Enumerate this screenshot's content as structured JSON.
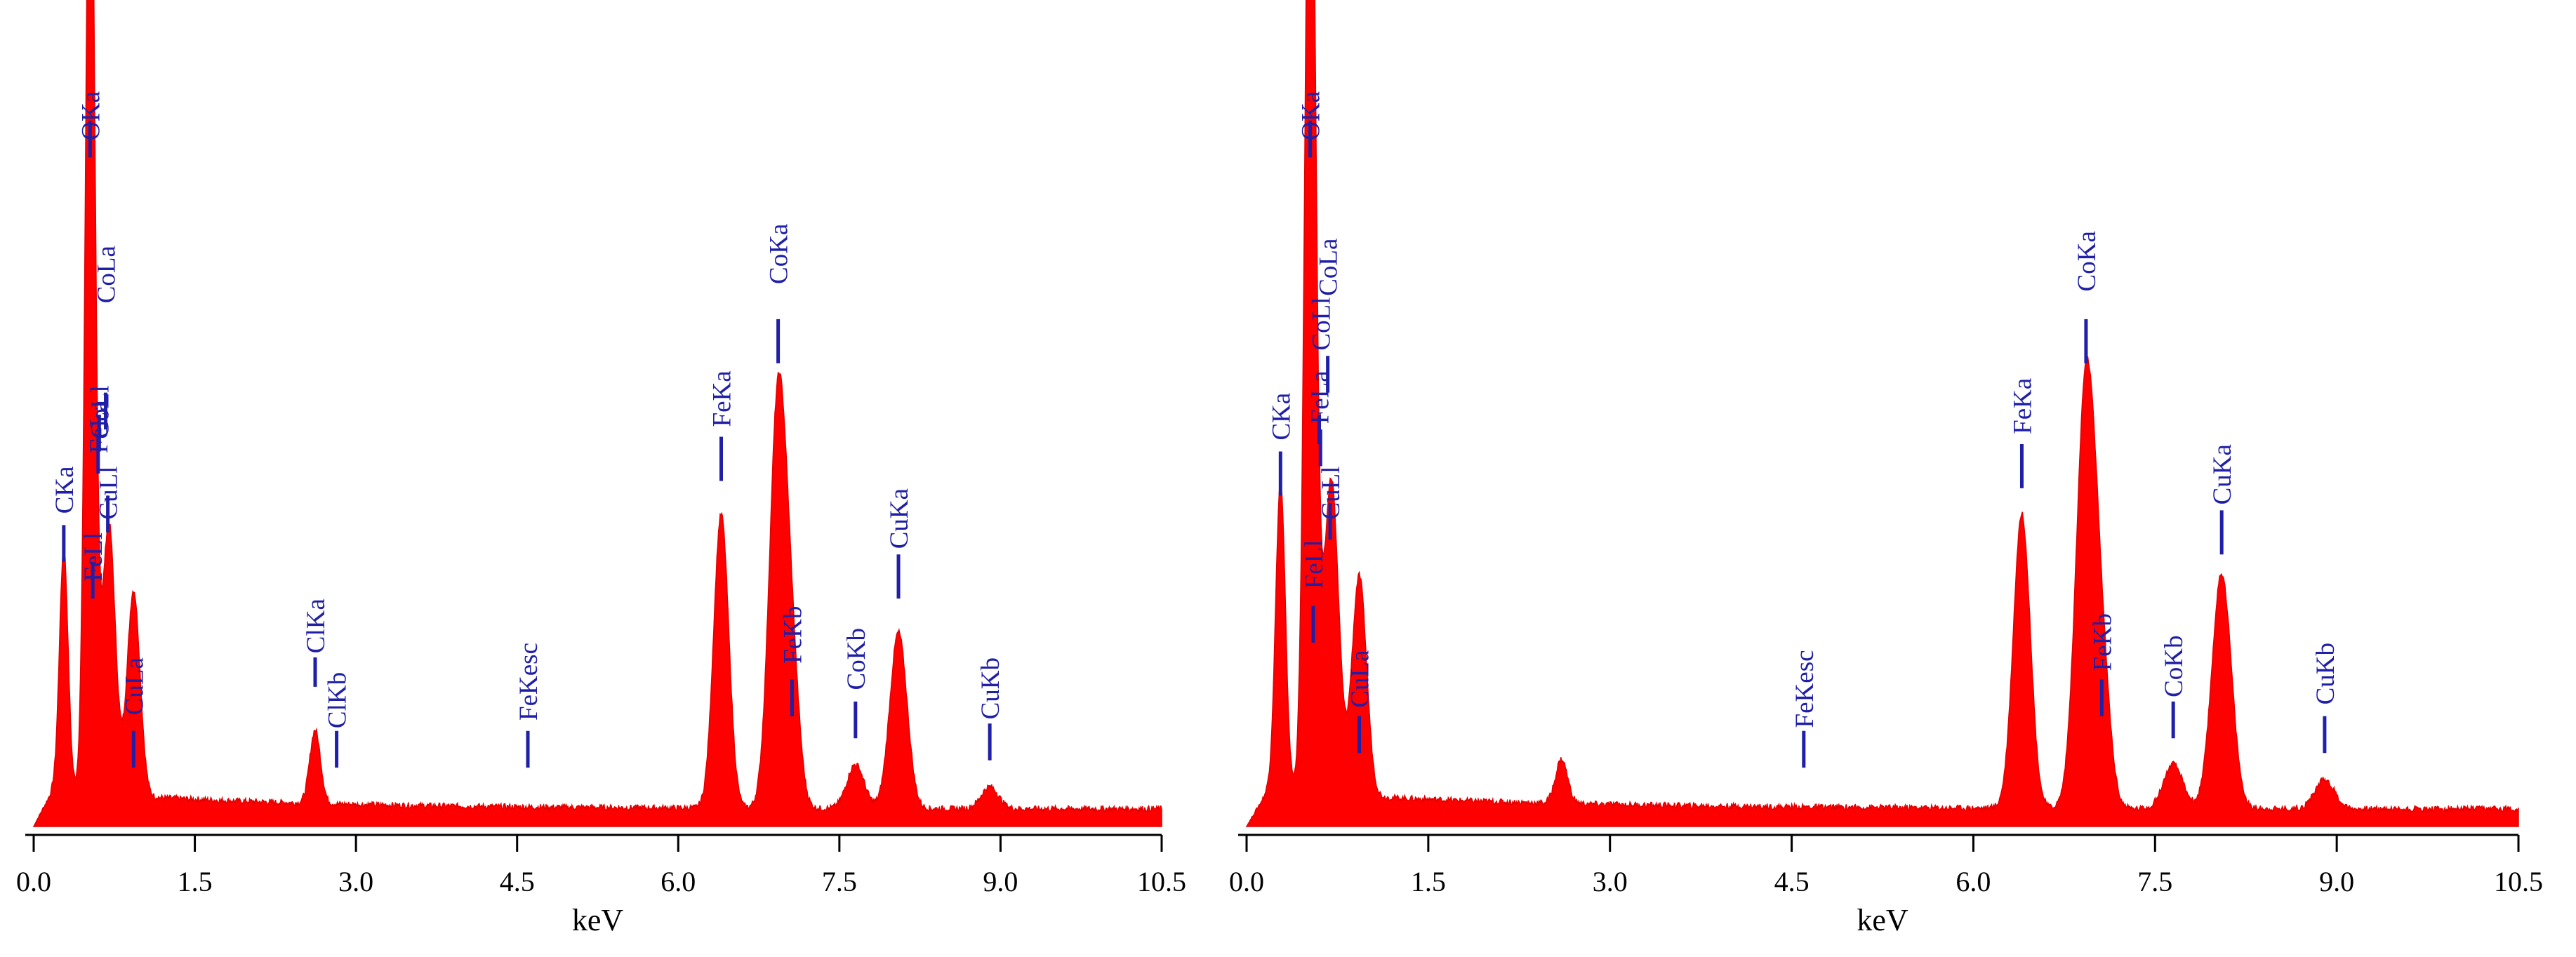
{
  "colors": {
    "spectrum": "#ff0000",
    "peak_label": "#1f1fa8",
    "axis": "#000000",
    "background": "#ffffff"
  },
  "chart_data": [
    {
      "type": "area",
      "xlabel": "keV",
      "ylabel": "",
      "xlim": [
        0,
        10.5
      ],
      "ylim": [
        0,
        100
      ],
      "x_ticks": [
        0.0,
        1.5,
        3.0,
        4.5,
        6.0,
        7.5,
        9.0,
        10.5
      ],
      "x_tick_labels": [
        "0.0",
        "1.5",
        "3.0",
        "4.5",
        "6.0",
        "7.5",
        "9.0",
        "10.5"
      ],
      "grid": false,
      "baseline": 2,
      "series": [
        {
          "peaks": [
            {
              "kev": 0.28,
              "height": 33,
              "width": 0.04
            },
            {
              "kev": 0.525,
              "height": 97,
              "width": 0.04
            },
            {
              "kev": 0.53,
              "height": 48,
              "width": 0.05
            },
            {
              "kev": 0.7,
              "height": 37,
              "width": 0.06
            },
            {
              "kev": 0.93,
              "height": 28,
              "width": 0.06
            },
            {
              "kev": 2.62,
              "height": 10,
              "width": 0.05
            },
            {
              "kev": 6.4,
              "height": 40,
              "width": 0.07
            },
            {
              "kev": 6.93,
              "height": 56,
              "width": 0.08
            },
            {
              "kev": 7.06,
              "height": 16,
              "width": 0.07
            },
            {
              "kev": 7.65,
              "height": 6,
              "width": 0.08
            },
            {
              "kev": 8.05,
              "height": 24,
              "width": 0.08
            },
            {
              "kev": 8.9,
              "height": 3,
              "width": 0.08
            }
          ]
        }
      ],
      "annotations": [
        {
          "text": "OKa",
          "kev": 0.525,
          "label_top": 100,
          "marker_top": 96,
          "marker_bottom": 91
        },
        {
          "text": "CKa",
          "kev": 0.28,
          "label_top": 49,
          "marker_top": 41,
          "marker_bottom": 36
        },
        {
          "text": "FeLa",
          "kev": 0.6,
          "label_top": 58,
          "marker_top": 53,
          "marker_bottom": 48
        },
        {
          "text": "CoLa",
          "kev": 0.67,
          "label_top": 79,
          "marker_top": 59,
          "marker_bottom": 54
        },
        {
          "text": "CoLl",
          "kev": 0.61,
          "label_top": 60,
          "marker_top": 56,
          "marker_bottom": 51
        },
        {
          "text": "CuLl",
          "kev": 0.69,
          "label_top": 49,
          "marker_top": 45,
          "marker_bottom": 40
        },
        {
          "text": "FeLl",
          "kev": 0.55,
          "label_top": 40,
          "marker_top": 36,
          "marker_bottom": 31
        },
        {
          "text": "CuLa",
          "kev": 0.93,
          "label_top": 23,
          "marker_top": 13,
          "marker_bottom": 8
        },
        {
          "text": "ClKa",
          "kev": 2.62,
          "label_top": 31,
          "marker_top": 23,
          "marker_bottom": 19
        },
        {
          "text": "ClKb",
          "kev": 2.82,
          "label_top": 21,
          "marker_top": 13,
          "marker_bottom": 8
        },
        {
          "text": "FeKesc",
          "kev": 4.6,
          "label_top": 25,
          "marker_top": 13,
          "marker_bottom": 8
        },
        {
          "text": "FeKa",
          "kev": 6.4,
          "label_top": 62,
          "marker_top": 53,
          "marker_bottom": 47
        },
        {
          "text": "CoKa",
          "kev": 6.93,
          "label_top": 82,
          "marker_top": 69,
          "marker_bottom": 63
        },
        {
          "text": "FeKb",
          "kev": 7.06,
          "label_top": 30,
          "marker_top": 20,
          "marker_bottom": 15
        },
        {
          "text": "CoKb",
          "kev": 7.65,
          "label_top": 27,
          "marker_top": 17,
          "marker_bottom": 12
        },
        {
          "text": "CuKa",
          "kev": 8.05,
          "label_top": 46,
          "marker_top": 37,
          "marker_bottom": 31
        },
        {
          "text": "CuKb",
          "kev": 8.9,
          "label_top": 23,
          "marker_top": 14,
          "marker_bottom": 9
        }
      ]
    },
    {
      "type": "area",
      "xlabel": "keV",
      "ylabel": "",
      "xlim": [
        0,
        10.5
      ],
      "ylim": [
        0,
        100
      ],
      "x_ticks": [
        0.0,
        1.5,
        3.0,
        4.5,
        6.0,
        7.5,
        9.0,
        10.5
      ],
      "x_tick_labels": [
        "0.0",
        "1.5",
        "3.0",
        "4.5",
        "6.0",
        "7.5",
        "9.0",
        "10.5"
      ],
      "grid": false,
      "baseline": 2,
      "series": [
        {
          "peaks": [
            {
              "kev": 0.28,
              "height": 42,
              "width": 0.04
            },
            {
              "kev": 0.525,
              "height": 97,
              "width": 0.04
            },
            {
              "kev": 0.53,
              "height": 55,
              "width": 0.05
            },
            {
              "kev": 0.7,
              "height": 43,
              "width": 0.06
            },
            {
              "kev": 0.93,
              "height": 30,
              "width": 0.06
            },
            {
              "kev": 2.6,
              "height": 6,
              "width": 0.05
            },
            {
              "kev": 6.4,
              "height": 40,
              "width": 0.07
            },
            {
              "kev": 6.93,
              "height": 58,
              "width": 0.08
            },
            {
              "kev": 7.06,
              "height": 16,
              "width": 0.07
            },
            {
              "kev": 7.65,
              "height": 6,
              "width": 0.08
            },
            {
              "kev": 8.05,
              "height": 32,
              "width": 0.08
            },
            {
              "kev": 8.9,
              "height": 4,
              "width": 0.08
            }
          ]
        }
      ],
      "annotations": [
        {
          "text": "OKa",
          "kev": 0.525,
          "label_top": 100,
          "marker_top": 96,
          "marker_bottom": 91
        },
        {
          "text": "CKa",
          "kev": 0.28,
          "label_top": 59,
          "marker_top": 51,
          "marker_bottom": 45
        },
        {
          "text": "FeLa",
          "kev": 0.6,
          "label_top": 62,
          "marker_top": 56,
          "marker_bottom": 52
        },
        {
          "text": "CoLa",
          "kev": 0.67,
          "label_top": 80,
          "marker_top": 64,
          "marker_bottom": 59
        },
        {
          "text": "CoLl",
          "kev": 0.61,
          "label_top": 72,
          "marker_top": 54,
          "marker_bottom": 49
        },
        {
          "text": "CuLl",
          "kev": 0.69,
          "label_top": 49,
          "marker_top": 44,
          "marker_bottom": 39
        },
        {
          "text": "FeLl",
          "kev": 0.55,
          "label_top": 39,
          "marker_top": 30,
          "marker_bottom": 25
        },
        {
          "text": "CuLa",
          "kev": 0.93,
          "label_top": 24,
          "marker_top": 15,
          "marker_bottom": 10
        },
        {
          "text": "FeKesc",
          "kev": 4.6,
          "label_top": 24,
          "marker_top": 13,
          "marker_bottom": 8
        },
        {
          "text": "FeKa",
          "kev": 6.4,
          "label_top": 61,
          "marker_top": 52,
          "marker_bottom": 46
        },
        {
          "text": "CoKa",
          "kev": 6.93,
          "label_top": 81,
          "marker_top": 69,
          "marker_bottom": 63
        },
        {
          "text": "FeKb",
          "kev": 7.06,
          "label_top": 29,
          "marker_top": 20,
          "marker_bottom": 15
        },
        {
          "text": "CoKb",
          "kev": 7.65,
          "label_top": 26,
          "marker_top": 17,
          "marker_bottom": 12
        },
        {
          "text": "CuKa",
          "kev": 8.05,
          "label_top": 52,
          "marker_top": 43,
          "marker_bottom": 37
        },
        {
          "text": "CuKb",
          "kev": 8.9,
          "label_top": 25,
          "marker_top": 15,
          "marker_bottom": 10
        }
      ]
    }
  ]
}
